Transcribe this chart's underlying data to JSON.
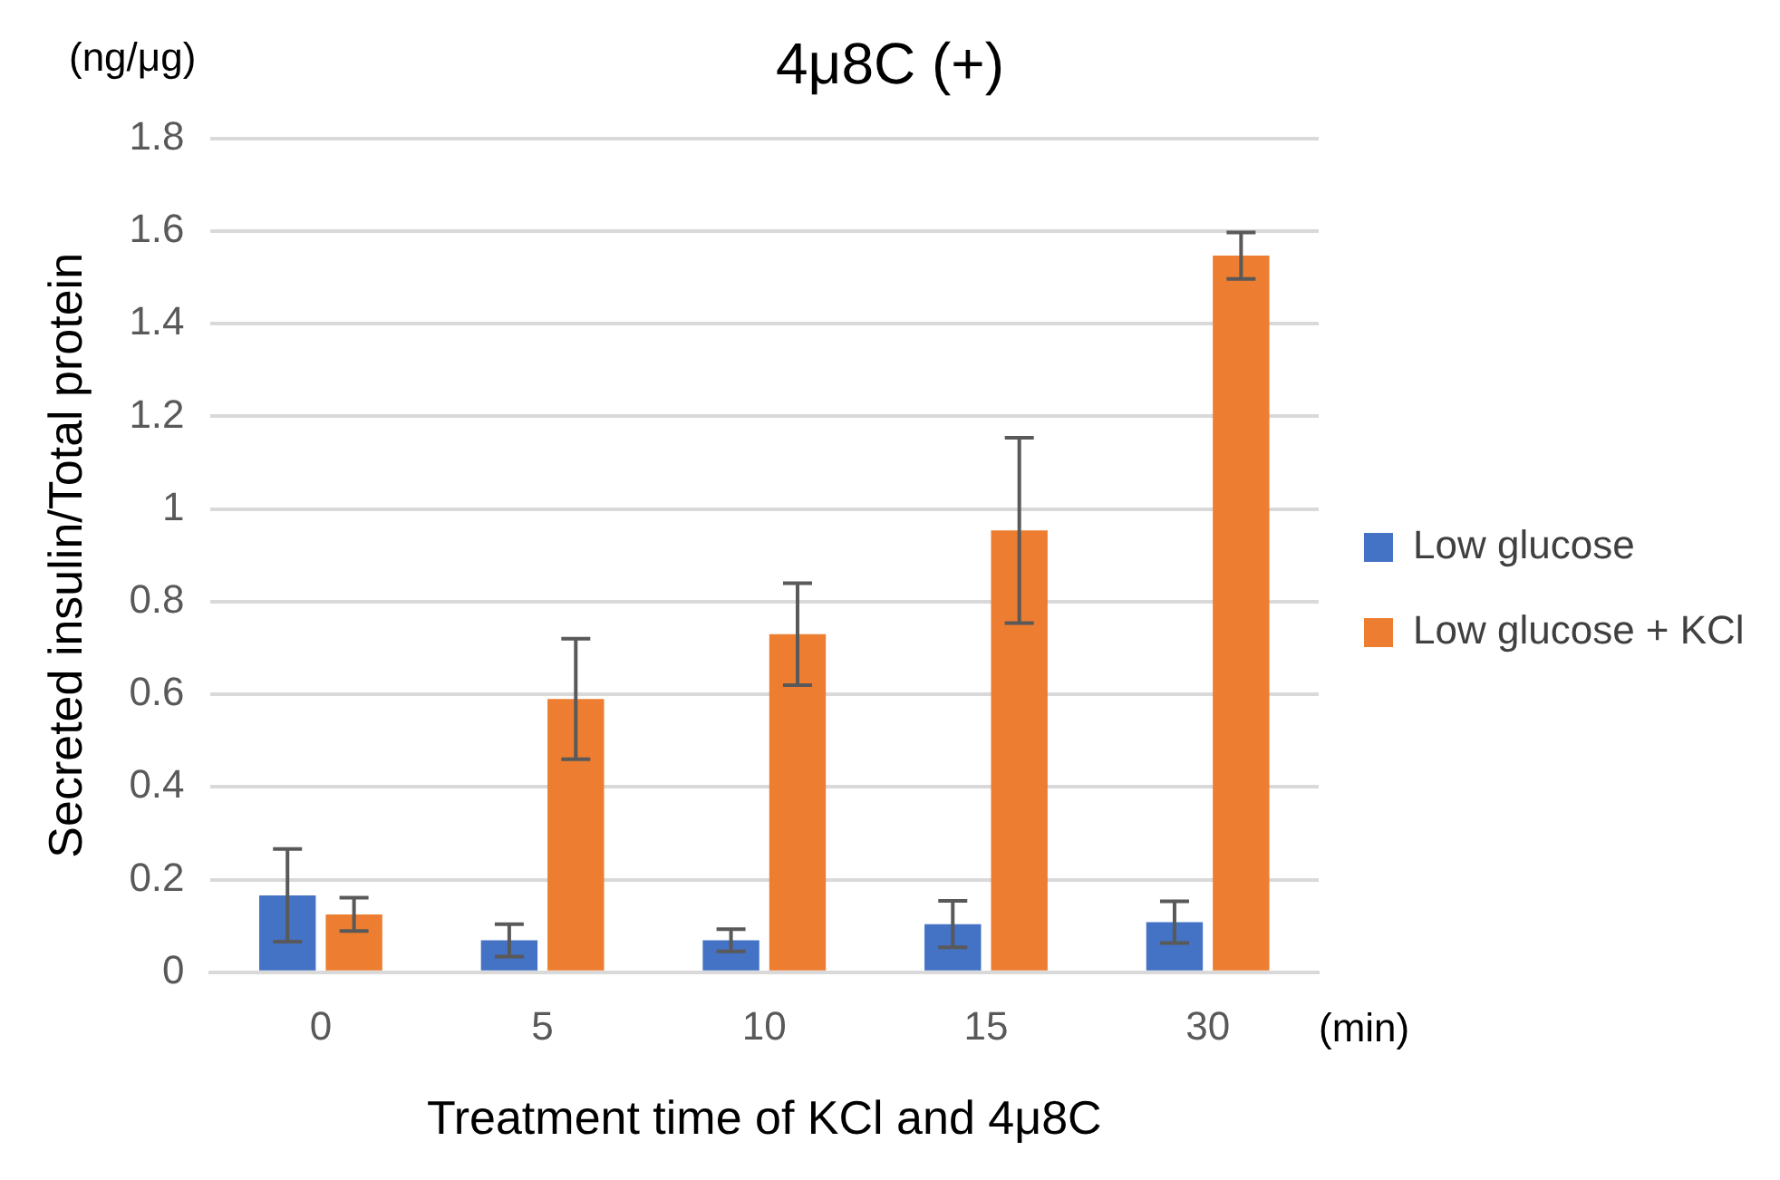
{
  "chart_data": {
    "type": "bar",
    "title": "4μ8C (+)",
    "xlabel": "Treatment time of KCl and 4μ8C",
    "ylabel": "Secreted insulin/Total protein",
    "annotations": [
      "(ng/μg)",
      "(min)"
    ],
    "categories": [
      "0",
      "5",
      "10",
      "15",
      "30"
    ],
    "series": [
      {
        "name": "Low glucose",
        "color": "#4472c4",
        "values": [
          0.166,
          0.069,
          0.069,
          0.104,
          0.108
        ],
        "errors": [
          0.1,
          0.035,
          0.024,
          0.05,
          0.045
        ]
      },
      {
        "name": "Low glucose + KCl",
        "color": "#ed7d31",
        "values": [
          0.125,
          0.59,
          0.73,
          0.954,
          1.547
        ],
        "errors": [
          0.036,
          0.13,
          0.11,
          0.2,
          0.05
        ]
      }
    ],
    "ylim": [
      0,
      1.8
    ],
    "yticks": [
      0,
      0.2,
      0.4,
      0.6,
      0.8,
      1,
      1.2,
      1.4,
      1.6,
      1.8
    ],
    "grid": "y",
    "legend": "right"
  }
}
